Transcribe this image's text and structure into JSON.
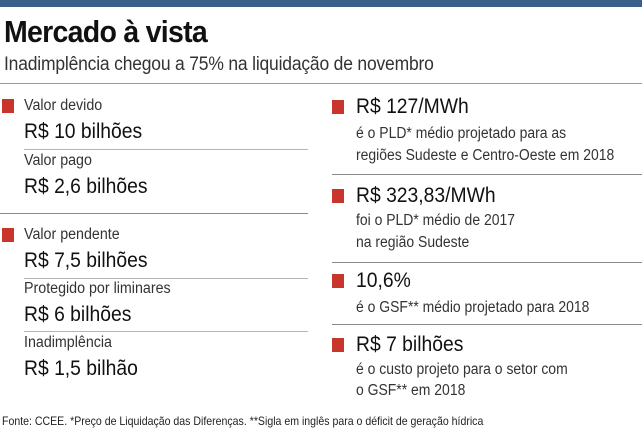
{
  "header": {
    "title": "Mercado à vista",
    "subtitle": "Inadimplência chegou a 75% na liquidação de novembro"
  },
  "left_items": [
    {
      "label": "Valor devido",
      "value": "R$ 10 bilhões",
      "marked": true
    },
    {
      "label": "Valor pago",
      "value": "R$ 2,6 bilhões",
      "marked": false
    },
    {
      "label": "Valor pendente",
      "value": "R$ 7,5 bilhões",
      "marked": true
    },
    {
      "label": "Protegido por liminares",
      "value": "R$ 6 bilhões",
      "marked": false
    },
    {
      "label": "Inadimplência",
      "value": "R$ 1,5 bilhão",
      "marked": false
    }
  ],
  "right_items": [
    {
      "headline": "R$ 127/MWh",
      "line1": "é o PLD* médio projetado para as",
      "line2": "regiões Sudeste e Centro-Oeste em 2018"
    },
    {
      "headline": "R$ 323,83/MWh",
      "line1": "foi o PLD* médio de 2017",
      "line2": "na região Sudeste"
    },
    {
      "headline": "10,6%",
      "line1": "é o GSF** médio projetado para 2018",
      "line2": ""
    },
    {
      "headline": "R$ 7 bilhões",
      "line1": "é o custo projeto para o setor com",
      "line2": "o GSF** em 2018"
    }
  ],
  "footer": {
    "source": "Fonte: CCEE. *Preço de Liquidação das Diferenças. **Sigla em inglês para o déficit de geração hídrica"
  },
  "colors": {
    "accent_red": "#c8352b",
    "top_bar": "#3a5f8a"
  }
}
